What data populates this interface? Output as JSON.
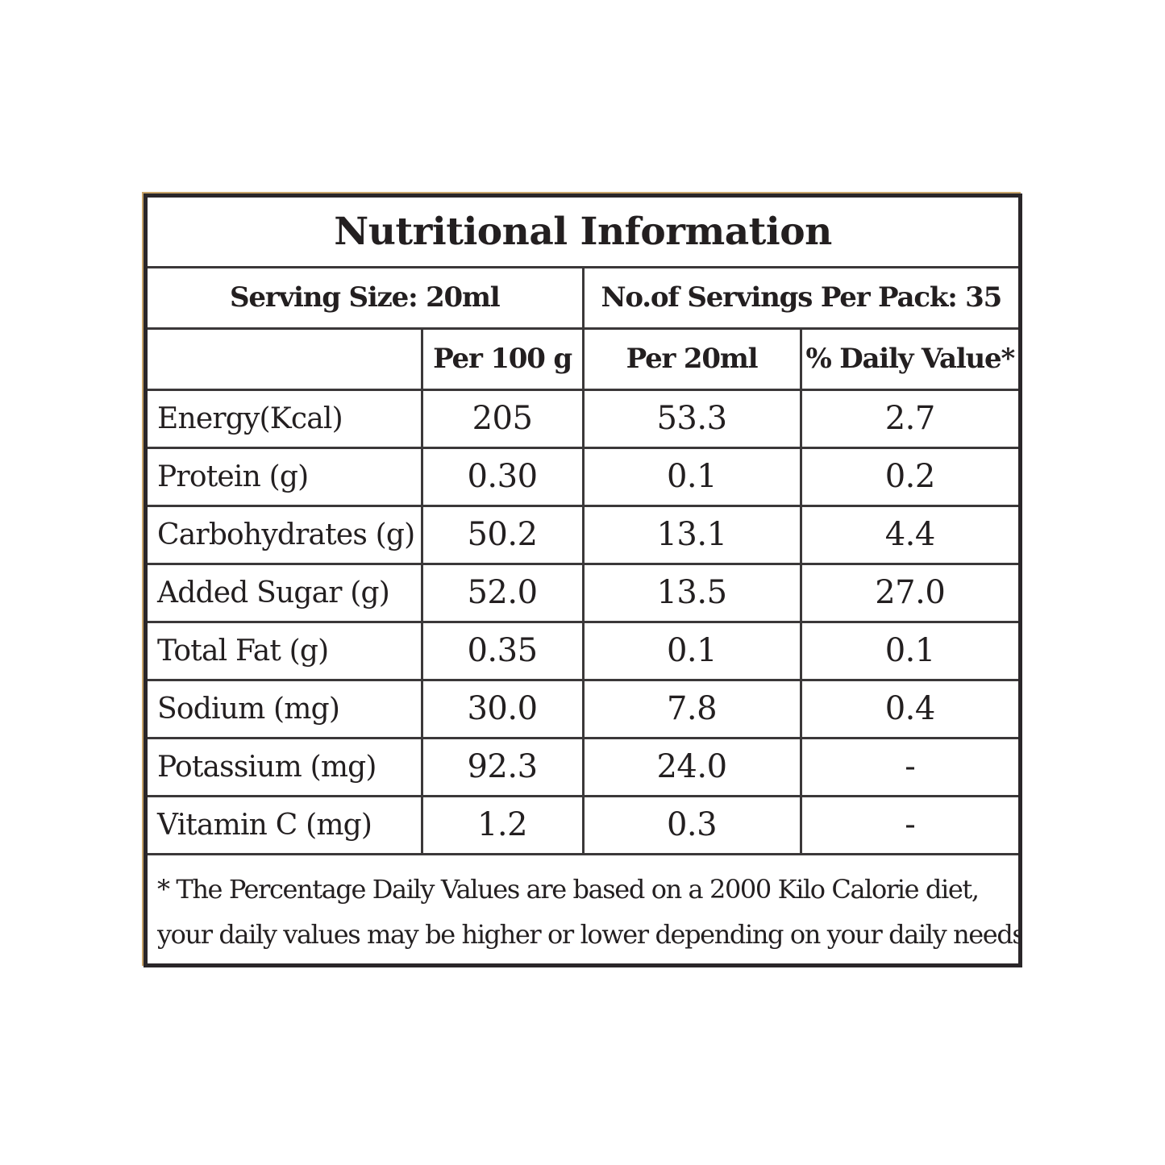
{
  "title": "Nutritional Information",
  "serving": {
    "size": "Serving Size: 20ml",
    "per_pack": "No.of Servings Per Pack: 35"
  },
  "columns": [
    "",
    "Per 100 g",
    "Per 20ml",
    "% Daily Value*"
  ],
  "rows": [
    {
      "nutrient": "Energy(Kcal)",
      "per100g": "205",
      "per20ml": "53.3",
      "dv": "2.7"
    },
    {
      "nutrient": "Protein (g)",
      "per100g": "0.30",
      "per20ml": "0.1",
      "dv": "0.2"
    },
    {
      "nutrient": "Carbohydrates (g)",
      "per100g": "50.2",
      "per20ml": "13.1",
      "dv": "4.4"
    },
    {
      "nutrient": "Added Sugar (g)",
      "per100g": "52.0",
      "per20ml": "13.5",
      "dv": "27.0"
    },
    {
      "nutrient": "Total Fat (g)",
      "per100g": "0.35",
      "per20ml": "0.1",
      "dv": "0.1"
    },
    {
      "nutrient": "Sodium (mg)",
      "per100g": "30.0",
      "per20ml": "7.8",
      "dv": "0.4"
    },
    {
      "nutrient": "Potassium (mg)",
      "per100g": "92.3",
      "per20ml": "24.0",
      "dv": "-"
    },
    {
      "nutrient": "Vitamin C (mg)",
      "per100g": "1.2",
      "per20ml": "0.3",
      "dv": "-"
    }
  ],
  "footnote": {
    "line1": "* The Percentage Daily Values are based on a 2000 Kilo Calorie diet,",
    "line2": "your daily values may be higher or lower depending on your daily needs."
  }
}
